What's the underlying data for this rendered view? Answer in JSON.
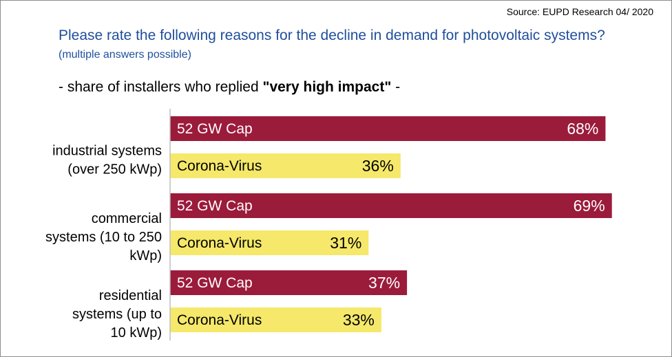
{
  "source": "Source:  EUPD Research 04/ 2020",
  "question": {
    "main": "Please rate the following reasons for the decline in demand for photovoltaic systems?",
    "note": "(multiple answers possible)"
  },
  "subtitle": {
    "prefix": "- share of installers who replied ",
    "emphasis": "\"very high impact\"",
    "suffix": " -"
  },
  "colors": {
    "gw_cap": "#9b1b3b",
    "corona": "#f5e86a",
    "gw_cap_text": "#ffffff",
    "corona_text": "#000000",
    "axis": "#bfbfbf",
    "question": "#1f4e9c"
  },
  "chart_data": {
    "type": "bar",
    "orientation": "horizontal",
    "unit": "%",
    "xlim": [
      0,
      100
    ],
    "categories": [
      {
        "lines": [
          "industrial systems",
          "(over 250 kWp)"
        ],
        "bars": [
          {
            "series": "52 GW Cap",
            "label": "52 GW Cap",
            "value": 68,
            "value_label": "68%"
          },
          {
            "series": "Corona-Virus",
            "label": "Corona-Virus",
            "value": 36,
            "value_label": "36%"
          }
        ]
      },
      {
        "lines": [
          "commercial",
          "systems (10 to 250",
          "kWp)"
        ],
        "bars": [
          {
            "series": "52 GW Cap",
            "label": "52 GW Cap",
            "value": 69,
            "value_label": "69%"
          },
          {
            "series": "Corona-Virus",
            "label": "Corona-Virus",
            "value": 31,
            "value_label": "31%"
          }
        ]
      },
      {
        "lines": [
          "residential",
          "systems (up to",
          "10 kWp)"
        ],
        "bars": [
          {
            "series": "52 GW Cap",
            "label": "52 GW Cap",
            "value": 37,
            "value_label": "37%"
          },
          {
            "series": "Corona-Virus",
            "label": "Corona-Virus",
            "value": 33,
            "value_label": "33%"
          }
        ]
      }
    ]
  }
}
